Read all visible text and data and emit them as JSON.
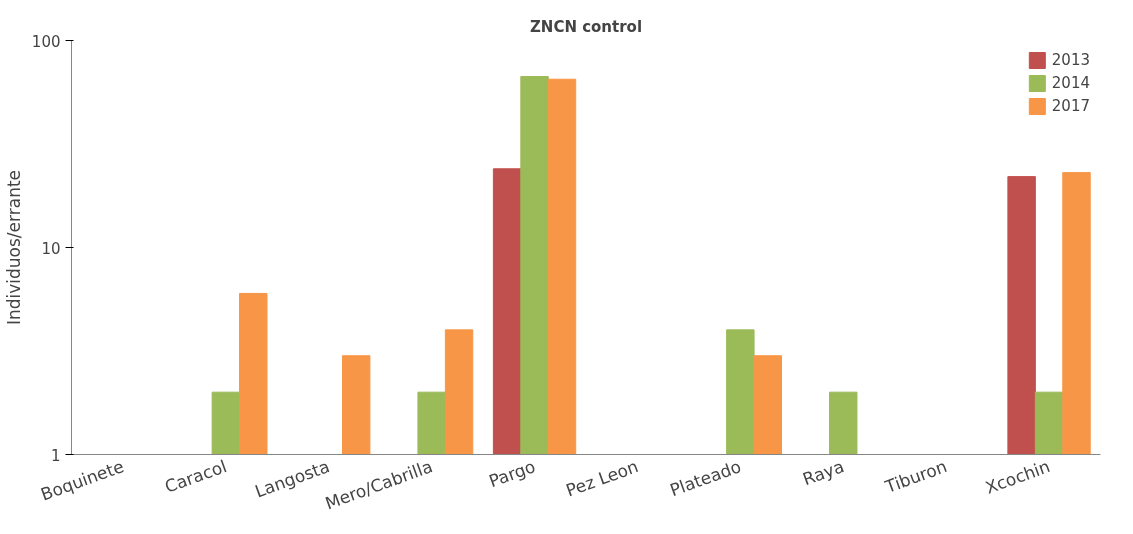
{
  "chart_data": {
    "type": "bar",
    "title": "ZNCN control",
    "ylabel": "Individuos/errante",
    "categories": [
      "Boquinete",
      "Caracol",
      "Langosta",
      "Mero/Cabrilla",
      "Pargo",
      "Pez Leon",
      "Plateado",
      "Raya",
      "Tiburon",
      "Xcochin"
    ],
    "series": [
      {
        "name": "2013",
        "color": "#c0504d",
        "values": [
          null,
          null,
          null,
          null,
          24,
          null,
          null,
          null,
          null,
          22
        ]
      },
      {
        "name": "2014",
        "color": "#9bbb59",
        "values": [
          null,
          2,
          null,
          2,
          67,
          null,
          4,
          2,
          null,
          2
        ]
      },
      {
        "name": "2017",
        "color": "#f79646",
        "values": [
          null,
          6,
          3,
          4,
          65,
          null,
          3,
          null,
          null,
          23
        ]
      }
    ],
    "log": "y",
    "ylim": [
      1,
      100
    ],
    "yticks": [
      1,
      10,
      100
    ],
    "grid": false,
    "legend": "top right"
  }
}
